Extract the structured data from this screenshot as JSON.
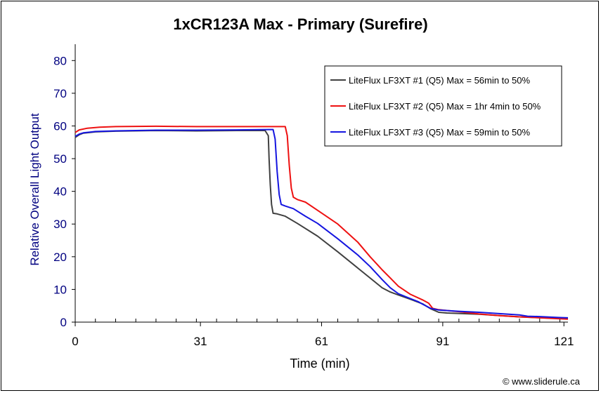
{
  "chart_data": {
    "type": "line",
    "title": "1xCR123A Max - Primary (Surefire)",
    "xlabel": "Time (min)",
    "ylabel": "Relative Overall Light Output",
    "xlim": [
      0,
      122
    ],
    "ylim": [
      0,
      85
    ],
    "x_ticks": [
      0,
      31,
      61,
      91,
      121
    ],
    "y_ticks": [
      0,
      10,
      20,
      30,
      40,
      50,
      60,
      70,
      80
    ],
    "grid": false,
    "legend_position": "top-right",
    "series": [
      {
        "name": "LiteFlux LF3XT #1 (Q5) Max = 56min to 50%",
        "color": "#404040",
        "points": [
          [
            0,
            56.5
          ],
          [
            1,
            57.3
          ],
          [
            2,
            57.8
          ],
          [
            5,
            58.2
          ],
          [
            10,
            58.4
          ],
          [
            20,
            58.6
          ],
          [
            30,
            58.5
          ],
          [
            40,
            58.6
          ],
          [
            47,
            58.6
          ],
          [
            47.8,
            57
          ],
          [
            48,
            50
          ],
          [
            48.3,
            42
          ],
          [
            48.6,
            36
          ],
          [
            49,
            33.3
          ],
          [
            50,
            33.1
          ],
          [
            52,
            32.4
          ],
          [
            55,
            30.2
          ],
          [
            60,
            26.3
          ],
          [
            65,
            21.5
          ],
          [
            70,
            16.5
          ],
          [
            73,
            13.5
          ],
          [
            76,
            10.5
          ],
          [
            78,
            9.2
          ],
          [
            80,
            8.3
          ],
          [
            83,
            7.0
          ],
          [
            86,
            5.6
          ],
          [
            88,
            4.1
          ],
          [
            90,
            3.0
          ],
          [
            92,
            2.8
          ],
          [
            100,
            2.4
          ],
          [
            110,
            1.6
          ],
          [
            116,
            1.3
          ],
          [
            120,
            1.1
          ],
          [
            122,
            1.0
          ]
        ]
      },
      {
        "name": "LiteFlux LF3XT #2 (Q5) Max = 1hr 4min to 50%",
        "color": "#ee1111",
        "points": [
          [
            0,
            58.0
          ],
          [
            1,
            58.8
          ],
          [
            3,
            59.3
          ],
          [
            6,
            59.6
          ],
          [
            10,
            59.8
          ],
          [
            20,
            59.9
          ],
          [
            30,
            59.8
          ],
          [
            40,
            59.8
          ],
          [
            52,
            59.8
          ],
          [
            52.5,
            57
          ],
          [
            53,
            48
          ],
          [
            53.5,
            41
          ],
          [
            54,
            38.2
          ],
          [
            55,
            37.5
          ],
          [
            57,
            36.7
          ],
          [
            60,
            34.2
          ],
          [
            65,
            30.0
          ],
          [
            70,
            24.4
          ],
          [
            73,
            20.0
          ],
          [
            76,
            16.0
          ],
          [
            78,
            13.5
          ],
          [
            80,
            11.0
          ],
          [
            83,
            8.5
          ],
          [
            86,
            6.8
          ],
          [
            87.5,
            5.8
          ],
          [
            88.5,
            4.2
          ],
          [
            90,
            3.8
          ],
          [
            95,
            3.2
          ],
          [
            100,
            2.5
          ],
          [
            105,
            2.0
          ],
          [
            110,
            1.6
          ],
          [
            115,
            1.3
          ],
          [
            120,
            1.0
          ],
          [
            122,
            0.9
          ]
        ]
      },
      {
        "name": "LiteFlux LF3XT #3 (Q5) Max = 59min to 50%",
        "color": "#1515e0",
        "points": [
          [
            0,
            56.8
          ],
          [
            1,
            57.5
          ],
          [
            2,
            57.9
          ],
          [
            5,
            58.3
          ],
          [
            10,
            58.5
          ],
          [
            20,
            58.7
          ],
          [
            30,
            58.7
          ],
          [
            40,
            58.8
          ],
          [
            49,
            58.9
          ],
          [
            49.5,
            56
          ],
          [
            50,
            46
          ],
          [
            50.5,
            39
          ],
          [
            51,
            36
          ],
          [
            52,
            35.5
          ],
          [
            54,
            34.7
          ],
          [
            57,
            32.4
          ],
          [
            60,
            30.2
          ],
          [
            65,
            25.5
          ],
          [
            70,
            20.5
          ],
          [
            73,
            17.0
          ],
          [
            76,
            13.0
          ],
          [
            78,
            10.5
          ],
          [
            80,
            8.7
          ],
          [
            83,
            7.2
          ],
          [
            85,
            6.2
          ],
          [
            86,
            5.5
          ],
          [
            88,
            4.2
          ],
          [
            90,
            3.7
          ],
          [
            95,
            3.3
          ],
          [
            100,
            3.0
          ],
          [
            105,
            2.6
          ],
          [
            110,
            2.2
          ],
          [
            112,
            1.8
          ],
          [
            115,
            1.7
          ],
          [
            120,
            1.4
          ],
          [
            122,
            1.3
          ]
        ]
      }
    ]
  },
  "footer": {
    "credit": "© www.sliderule.ca"
  }
}
